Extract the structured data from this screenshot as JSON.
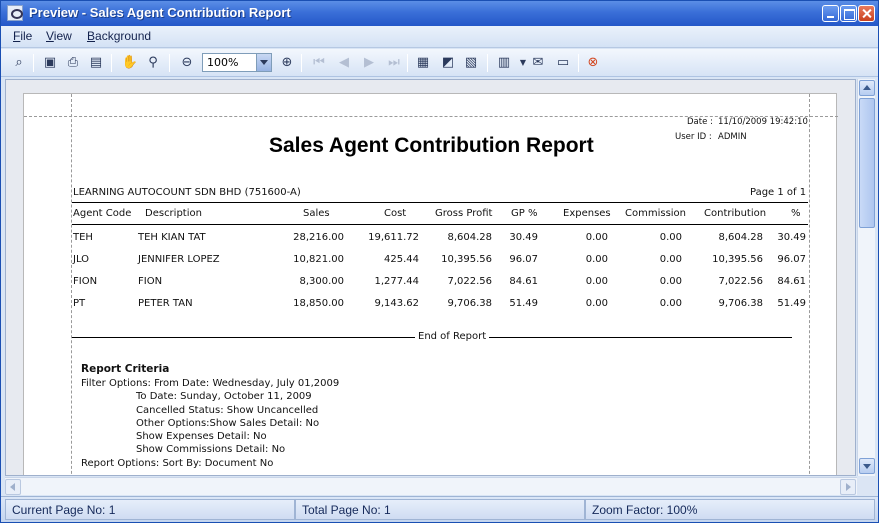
{
  "window": {
    "title": "Preview - Sales Agent Contribution Report"
  },
  "menu": {
    "items": [
      "File",
      "View",
      "Background"
    ]
  },
  "toolbar": {
    "zoom_value": "100%",
    "tools": [
      "find-icon",
      "print-setup-icon",
      "print-icon",
      "export-icon",
      "hand-icon",
      "magnifier-icon",
      "zoom-out-icon",
      "zoom-in-icon",
      "first-page-icon",
      "prev-page-icon",
      "next-page-icon",
      "last-page-icon",
      "multiple-pages-icon",
      "page-color-icon",
      "watermark-icon",
      "export-document-icon",
      "send-email-icon",
      "open-icon",
      "exit-icon"
    ]
  },
  "report": {
    "date_label": "Date :",
    "date_value": "11/10/2009 19:42:10",
    "user_label": "User ID :",
    "user_value": "ADMIN",
    "title": "Sales Agent Contribution Report",
    "company": "LEARNING AUTOCOUNT SDN BHD (751600-A)",
    "page_info": "Page 1 of 1",
    "columns": [
      "Agent Code",
      "Description",
      "Sales",
      "Cost",
      "Gross Profit",
      "GP %",
      "Expenses",
      "Commission",
      "Contribution",
      "%"
    ],
    "rows": [
      [
        "TEH",
        "TEH KIAN TAT",
        "28,216.00",
        "19,611.72",
        "8,604.28",
        "30.49",
        "0.00",
        "0.00",
        "8,604.28",
        "30.49"
      ],
      [
        "JLO",
        "JENNIFER LOPEZ",
        "10,821.00",
        "425.44",
        "10,395.56",
        "96.07",
        "0.00",
        "0.00",
        "10,395.56",
        "96.07"
      ],
      [
        "FION",
        "FION",
        "8,300.00",
        "1,277.44",
        "7,022.56",
        "84.61",
        "0.00",
        "0.00",
        "7,022.56",
        "84.61"
      ],
      [
        "PT",
        "PETER TAN",
        "18,850.00",
        "9,143.62",
        "9,706.38",
        "51.49",
        "0.00",
        "0.00",
        "9,706.38",
        "51.49"
      ]
    ],
    "end_text": "End of Report",
    "criteria": {
      "heading": "Report Criteria",
      "lines": [
        "Filter Options: From Date: Wednesday, July 01,2009",
        "To Date: Sunday, October 11, 2009",
        "Cancelled Status: Show Uncancelled",
        "Other Options:Show Sales Detail: No",
        "Show Expenses Detail: No",
        "Show Commissions Detail: No",
        "Report Options: Sort By: Document No"
      ]
    }
  },
  "status": {
    "current_page": "Current Page No: 1",
    "total_page": "Total Page No: 1",
    "zoom_factor": "Zoom Factor: 100%"
  }
}
